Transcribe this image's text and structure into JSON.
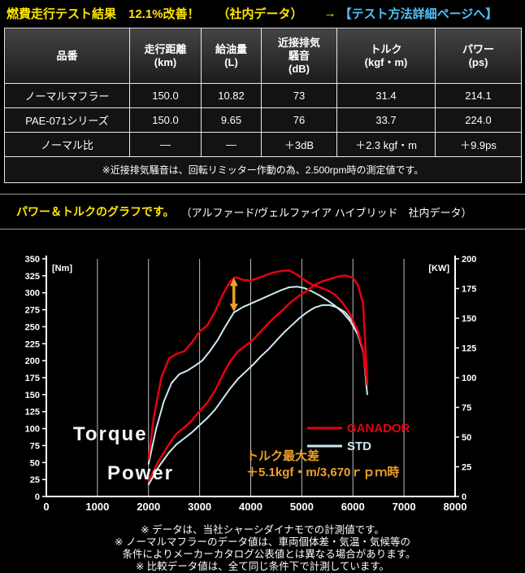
{
  "header": {
    "title": "燃費走行テスト結果　12.1%改善！",
    "note": "（社内データ）",
    "arrow": "→",
    "link": "【テスト方法詳細ページへ】"
  },
  "table": {
    "columns": [
      "品番",
      "走行距離\n(km)",
      "給油量\n(L)",
      "近接排気\n騒音\n(dB)",
      "トルク\n(kgf・m)",
      "パワー\n(ps)"
    ],
    "rows": [
      [
        "ノーマルマフラー",
        "150.0",
        "10.82",
        "73",
        "31.4",
        "214.1"
      ],
      [
        "PAE-071シリーズ",
        "150.0",
        "9.65",
        "76",
        "33.7",
        "224.0"
      ],
      [
        "ノーマル比",
        "—",
        "—",
        "＋3dB",
        "＋2.3 kgf・m",
        "＋9.9ps"
      ]
    ],
    "note": "※近接排気騒音は、回転リミッター作動の為、2.500rpm時の測定値です。"
  },
  "section": {
    "title": "パワー＆トルクのグラフです。",
    "subtitle": "（アルファード/ヴェルファイア ハイブリッド　社内データ）"
  },
  "chart_data": {
    "type": "line",
    "title": "パワー＆トルクのグラフです。",
    "x_range": [
      0,
      8000
    ],
    "x_ticks": [
      0,
      1000,
      2000,
      3000,
      4000,
      5000,
      6000,
      7000,
      8000
    ],
    "left_axis": {
      "label": "[Nm]",
      "range": [
        0,
        350
      ],
      "tick_step": 25
    },
    "right_axis": {
      "label": "[KW]",
      "range": [
        0,
        200
      ],
      "tick_step": 25
    },
    "grid": "vertical",
    "series": [
      {
        "name": "STD Torque",
        "axis": "left",
        "color": "#cfe9f2",
        "width": 2,
        "points": [
          [
            2000,
            48
          ],
          [
            2150,
            100
          ],
          [
            2300,
            140
          ],
          [
            2450,
            167
          ],
          [
            2600,
            180
          ],
          [
            2750,
            185
          ],
          [
            2900,
            192
          ],
          [
            3050,
            200
          ],
          [
            3200,
            214
          ],
          [
            3350,
            230
          ],
          [
            3500,
            250
          ],
          [
            3670,
            271
          ],
          [
            3850,
            279
          ],
          [
            4000,
            284
          ],
          [
            4150,
            289
          ],
          [
            4300,
            294
          ],
          [
            4450,
            299
          ],
          [
            4600,
            304
          ],
          [
            4750,
            308
          ],
          [
            4900,
            309
          ],
          [
            5050,
            307
          ],
          [
            5200,
            302
          ],
          [
            5350,
            296
          ],
          [
            5500,
            289
          ],
          [
            5650,
            281
          ],
          [
            5800,
            271
          ],
          [
            5950,
            258
          ],
          [
            6100,
            238
          ],
          [
            6200,
            213
          ],
          [
            6280,
            172
          ]
        ]
      },
      {
        "name": "STD Power",
        "axis": "right",
        "color": "#cfe9f2",
        "width": 2,
        "points": [
          [
            2000,
            10
          ],
          [
            2200,
            25
          ],
          [
            2400,
            37
          ],
          [
            2550,
            44
          ],
          [
            2700,
            49
          ],
          [
            2850,
            54
          ],
          [
            3000,
            60
          ],
          [
            3150,
            66
          ],
          [
            3300,
            73
          ],
          [
            3450,
            82
          ],
          [
            3600,
            91
          ],
          [
            3750,
            99
          ],
          [
            3900,
            105
          ],
          [
            4050,
            111
          ],
          [
            4200,
            118
          ],
          [
            4350,
            124
          ],
          [
            4500,
            131
          ],
          [
            4650,
            138
          ],
          [
            4800,
            144
          ],
          [
            4950,
            150
          ],
          [
            5100,
            155
          ],
          [
            5250,
            159
          ],
          [
            5400,
            161
          ],
          [
            5550,
            161
          ],
          [
            5700,
            159
          ],
          [
            5850,
            155
          ],
          [
            6000,
            147
          ],
          [
            6100,
            138
          ],
          [
            6200,
            123
          ],
          [
            6280,
            86
          ]
        ]
      },
      {
        "name": "GANADOR Torque",
        "axis": "left",
        "color": "#e60012",
        "width": 2.5,
        "points": [
          [
            2000,
            55
          ],
          [
            2100,
            115
          ],
          [
            2250,
            175
          ],
          [
            2400,
            203
          ],
          [
            2550,
            210
          ],
          [
            2700,
            214
          ],
          [
            2850,
            227
          ],
          [
            3000,
            243
          ],
          [
            3150,
            252
          ],
          [
            3300,
            272
          ],
          [
            3450,
            297
          ],
          [
            3600,
            317
          ],
          [
            3700,
            323
          ],
          [
            3850,
            319
          ],
          [
            4000,
            318
          ],
          [
            4150,
            322
          ],
          [
            4300,
            326
          ],
          [
            4450,
            330
          ],
          [
            4600,
            332
          ],
          [
            4750,
            333
          ],
          [
            4900,
            327
          ],
          [
            5050,
            319
          ],
          [
            5200,
            312
          ],
          [
            5350,
            308
          ],
          [
            5500,
            304
          ],
          [
            5650,
            297
          ],
          [
            5800,
            285
          ],
          [
            5950,
            268
          ],
          [
            6100,
            243
          ],
          [
            6200,
            215
          ],
          [
            6280,
            165
          ]
        ]
      },
      {
        "name": "GANADOR Power",
        "axis": "right",
        "color": "#e60012",
        "width": 2.5,
        "points": [
          [
            2000,
            13
          ],
          [
            2200,
            30
          ],
          [
            2400,
            44
          ],
          [
            2550,
            53
          ],
          [
            2700,
            58
          ],
          [
            2850,
            64
          ],
          [
            3000,
            72
          ],
          [
            3150,
            79
          ],
          [
            3300,
            89
          ],
          [
            3450,
            102
          ],
          [
            3600,
            114
          ],
          [
            3750,
            122
          ],
          [
            3900,
            127
          ],
          [
            4050,
            132
          ],
          [
            4200,
            139
          ],
          [
            4350,
            146
          ],
          [
            4500,
            152
          ],
          [
            4650,
            158
          ],
          [
            4800,
            164
          ],
          [
            4950,
            169
          ],
          [
            5100,
            173
          ],
          [
            5250,
            178
          ],
          [
            5400,
            181
          ],
          [
            5550,
            183
          ],
          [
            5700,
            185
          ],
          [
            5850,
            186
          ],
          [
            6000,
            184
          ],
          [
            6100,
            178
          ],
          [
            6200,
            162
          ],
          [
            6280,
            96
          ]
        ]
      }
    ],
    "legend": [
      {
        "label": "GANADOR",
        "color": "#e60012"
      },
      {
        "label": "STD",
        "color": "#cfe9f2"
      }
    ],
    "legend_position": "right-center",
    "curve_labels": [
      {
        "text": "Torque"
      },
      {
        "text": "Power"
      }
    ],
    "annotation": {
      "lines": [
        "トルク最大差",
        "＋5.1kgf・m/3,670ｒｐｍ時"
      ],
      "color": "#f0a028",
      "arrow_x": 3670,
      "arrow_from": 272,
      "arrow_to": 322
    }
  },
  "footnotes": [
    "※ データは、当社シャーシダイナモでの計測値です。",
    "※ ノーマルマフラーのデータ値は、車両個体差・気温・気候等の",
    "　 条件によりメーカーカタログ公表値とは異なる場合があります。",
    "※ 比較データ値は、全て同じ条件下で計測しています。"
  ]
}
